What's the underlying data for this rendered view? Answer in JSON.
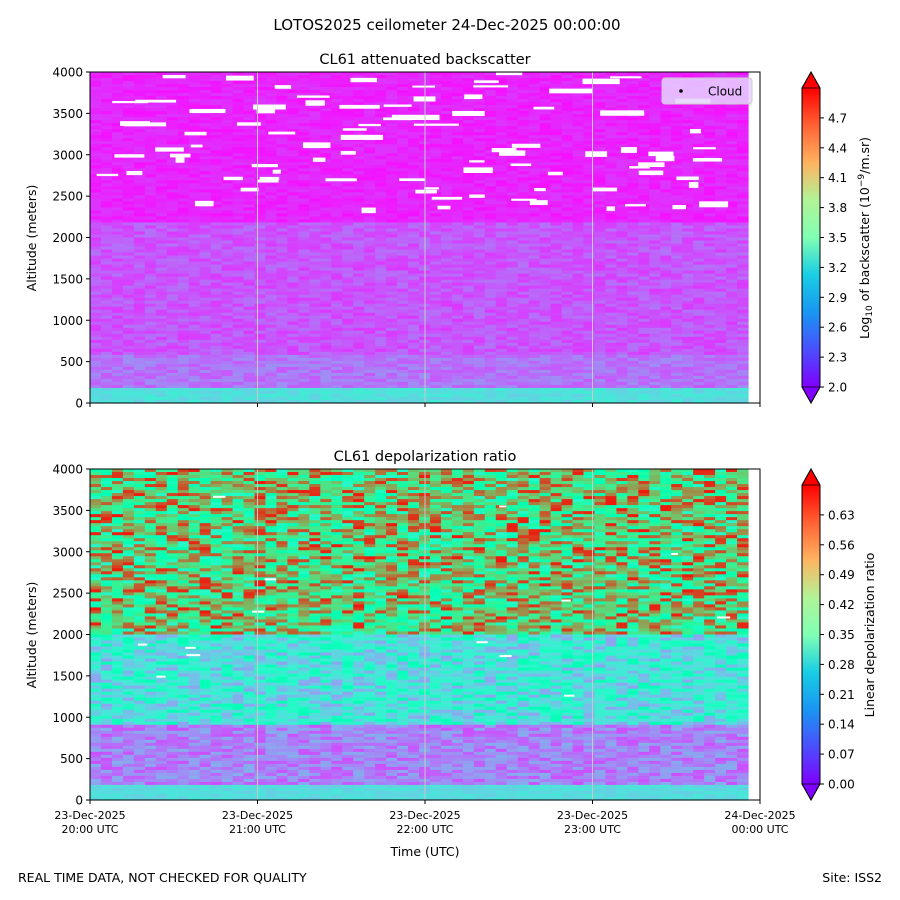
{
  "figure": {
    "suptitle": "LOTOS2025 ceilometer 24-Dec-2025 00:00:00",
    "footer_left": "REAL TIME DATA, NOT CHECKED FOR QUALITY",
    "footer_right": "Site: ISS2"
  },
  "chart_data": [
    {
      "type": "heatmap",
      "title": "CL61 attenuated backscatter",
      "xlabel": "",
      "ylabel": "Altitude (meters)",
      "ylim": [
        0,
        4000
      ],
      "yticks": [
        0,
        500,
        1000,
        1500,
        2000,
        2500,
        3000,
        3500,
        4000
      ],
      "xlim": [
        "2025-12-23 20:00",
        "2025-12-24 00:00"
      ],
      "xticks": [
        "2025-12-23 20:00",
        "2025-12-23 21:00",
        "2025-12-23 22:00",
        "2025-12-23 23:00",
        "2025-12-24 00:00"
      ],
      "grid": "vertical",
      "legend": {
        "placement": "top-right",
        "entries": [
          "Cloud"
        ]
      },
      "colormap": "rainbow",
      "colorbar": {
        "label_prefix": "Log",
        "label_sub": "10",
        "label_mid": " of backscatter (10",
        "label_sup": "−9",
        "label_suffix": "/m.sr)",
        "range": [
          2.0,
          5.0
        ],
        "ticks": [
          "2.0",
          "2.3",
          "2.6",
          "2.9",
          "3.2",
          "3.5",
          "3.8",
          "4.1",
          "4.4",
          "4.7"
        ],
        "extend": "both"
      }
    },
    {
      "type": "heatmap",
      "title": "CL61 depolarization ratio",
      "xlabel": "Time (UTC)",
      "ylabel": "Altitude (meters)",
      "ylim": [
        0,
        4000
      ],
      "yticks": [
        0,
        500,
        1000,
        1500,
        2000,
        2500,
        3000,
        3500,
        4000
      ],
      "xlim": [
        "2025-12-23 20:00",
        "2025-12-24 00:00"
      ],
      "xticks": [
        "2025-12-23 20:00",
        "2025-12-23 21:00",
        "2025-12-23 22:00",
        "2025-12-23 23:00",
        "2025-12-24 00:00"
      ],
      "xtick_labels": [
        [
          "23-Dec-2025",
          "20:00 UTC"
        ],
        [
          "23-Dec-2025",
          "21:00 UTC"
        ],
        [
          "23-Dec-2025",
          "22:00 UTC"
        ],
        [
          "23-Dec-2025",
          "23:00 UTC"
        ],
        [
          "24-Dec-2025",
          "00:00 UTC"
        ]
      ],
      "grid": "vertical",
      "colormap": "rainbow",
      "colorbar": {
        "label": "Linear depolarization ratio",
        "range": [
          0.0,
          0.7
        ],
        "ticks": [
          "0.00",
          "0.07",
          "0.14",
          "0.21",
          "0.28",
          "0.35",
          "0.42",
          "0.49",
          "0.56",
          "0.63"
        ],
        "extend": "both"
      }
    }
  ]
}
